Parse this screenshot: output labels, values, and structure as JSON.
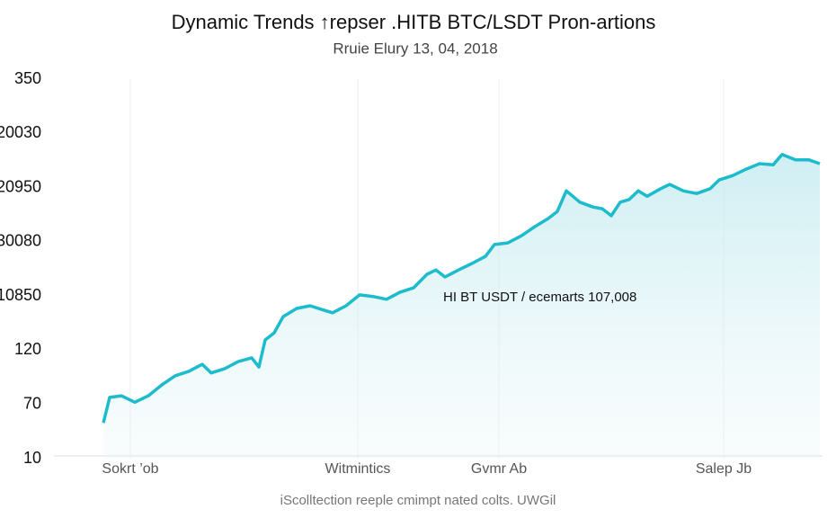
{
  "chart_data": {
    "type": "line",
    "title": "Dynamic Trends ↑repser .HITB BTC/LSDT Pron-artions",
    "subtitle": "Rruie Elury 13, 04, 2018",
    "annotation": "HI BT USDT / ecemarts 107,008",
    "footer": "iScolltection reeple cmimpt nated colts. UWGil",
    "color": "#1cbccc",
    "grid": "x",
    "xlim": [
      0,
      855
    ],
    "xticks": [
      {
        "value": 85,
        "label": "Sokrt ’ob"
      },
      {
        "value": 338,
        "label": "Witmintics"
      },
      {
        "value": 495,
        "label": "Gvmr Ab"
      },
      {
        "value": 745,
        "label": "Salep Jb"
      }
    ],
    "ylim": [
      0,
      7
    ],
    "yticks": [
      {
        "value": 0,
        "label": "10"
      },
      {
        "value": 1,
        "label": "70"
      },
      {
        "value": 2,
        "label": "120"
      },
      {
        "value": 3,
        "label": "10850"
      },
      {
        "value": 4,
        "label": "30080"
      },
      {
        "value": 5,
        "label": "20950"
      },
      {
        "value": 6,
        "label": "20030"
      },
      {
        "value": 7,
        "label": "350"
      }
    ],
    "x": [
      55,
      62,
      75,
      90,
      105,
      120,
      135,
      150,
      165,
      175,
      190,
      205,
      220,
      228,
      235,
      245,
      255,
      270,
      285,
      300,
      310,
      325,
      340,
      355,
      370,
      385,
      400,
      415,
      425,
      435,
      450,
      465,
      480,
      490,
      505,
      520,
      535,
      550,
      560,
      570,
      585,
      600,
      610,
      620,
      630,
      640,
      650,
      660,
      675,
      685,
      700,
      715,
      730,
      740,
      755,
      770,
      785,
      800,
      810,
      825,
      840,
      852
    ],
    "values": [
      0.66,
      1.13,
      1.16,
      1.04,
      1.16,
      1.36,
      1.53,
      1.61,
      1.74,
      1.58,
      1.66,
      1.79,
      1.86,
      1.69,
      2.19,
      2.32,
      2.62,
      2.77,
      2.82,
      2.74,
      2.69,
      2.82,
      3.02,
      2.99,
      2.94,
      3.07,
      3.15,
      3.4,
      3.48,
      3.35,
      3.48,
      3.6,
      3.73,
      3.95,
      3.98,
      4.11,
      4.28,
      4.43,
      4.56,
      4.94,
      4.73,
      4.64,
      4.61,
      4.48,
      4.73,
      4.78,
      4.94,
      4.84,
      4.98,
      5.06,
      4.94,
      4.89,
      4.98,
      5.14,
      5.22,
      5.34,
      5.44,
      5.42,
      5.61,
      5.51,
      5.51,
      5.44
    ]
  }
}
